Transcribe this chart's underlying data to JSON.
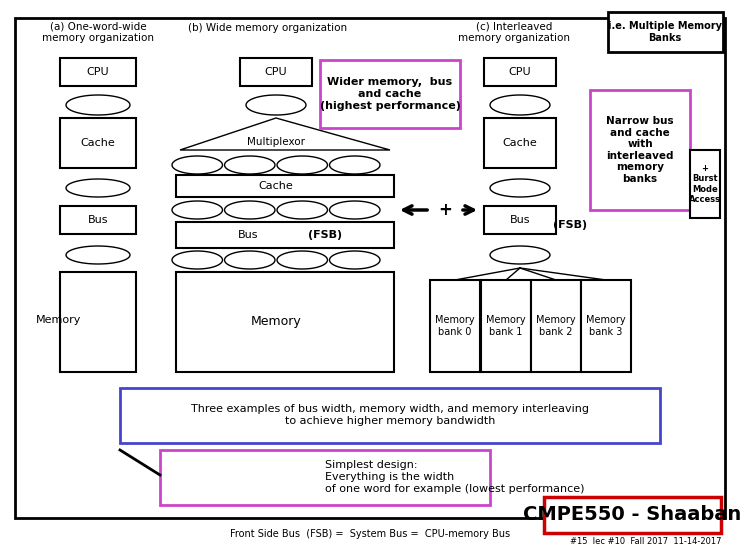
{
  "title_box": "i.e. Multiple Memory\nBanks",
  "section_a_title": "(a) One-word-wide\nmemory organization",
  "section_b_title": "(b) Wide memory organization",
  "section_c_title": "(c) Interleaved\nmemory organization",
  "wider_text": "Wider memory,  bus\nand cache\n(highest performance)",
  "narrow_text": "Narrow bus\nand cache\nwith\ninterleaved\nmemory\nbanks",
  "burst_text": "+\nBurst\nMode\nAccess",
  "three_examples_text": "Three examples of bus width, memory width, and memory interleaving\nto achieve higher memory bandwidth",
  "simplest_text": "Simplest design:\nEverything is the width\nof one word for example (lowest performance)",
  "footer_text": "Front Side Bus  (FSB) =  System Bus =  CPU-memory Bus",
  "slide_text": "#15  lec #10  Fall 2017  11-14-2017",
  "cmpe_text": "CMPE550 - Shaaban",
  "bg_color": "#ffffff",
  "pink_color": "#cc44cc",
  "blue_color": "#4444cc",
  "red_color": "#cc0000"
}
